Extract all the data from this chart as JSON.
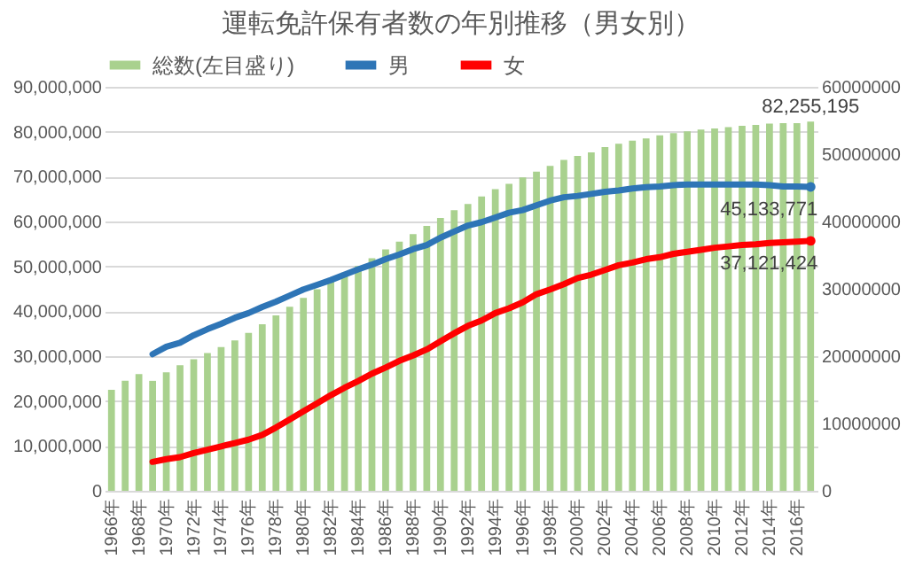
{
  "chart_data": {
    "type": "bar",
    "title": "運転免許保有者数の年別推移（男女別）",
    "categories": [
      "1966年",
      null,
      "1968年",
      null,
      "1970年",
      null,
      "1972年",
      null,
      "1974年",
      null,
      "1976年",
      null,
      "1978年",
      null,
      "1980年",
      null,
      "1982年",
      null,
      "1984年",
      null,
      "1986年",
      null,
      "1988年",
      null,
      "1990年",
      null,
      "1992年",
      null,
      "1994年",
      null,
      "1996年",
      null,
      "1998年",
      null,
      "2000年",
      null,
      "2002年",
      null,
      "2004年",
      null,
      "2006年",
      null,
      "2008年",
      null,
      "2010年",
      null,
      "2012年",
      null,
      "2014年",
      null,
      "2016年",
      null
    ],
    "series": [
      {
        "name": "総数(左目盛り)",
        "type": "bar",
        "color": "#a9d18e",
        "values": [
          22500000,
          24500000,
          26000000,
          24500000,
          26400000,
          28000000,
          29300000,
          30700000,
          32000000,
          33500000,
          35200000,
          37100000,
          39100000,
          41000000,
          43000000,
          44900000,
          46900000,
          48600000,
          50100000,
          51800000,
          53800000,
          55500000,
          57200000,
          59000000,
          60800000,
          62500000,
          63900000,
          65600000,
          67200000,
          68400000,
          69800000,
          71100000,
          72400000,
          73700000,
          74600000,
          75400000,
          76600000,
          77300000,
          78000000,
          78500000,
          79200000,
          79700000,
          80100000,
          80500000,
          80700000,
          81000000,
          81300000,
          81500000,
          81800000,
          81900000,
          81900000,
          82255195
        ],
        "value_labels": [
          null,
          null,
          null,
          null,
          null,
          null,
          null,
          null,
          null,
          null,
          null,
          null,
          null,
          null,
          null,
          null,
          null,
          null,
          null,
          null,
          null,
          null,
          null,
          null,
          null,
          null,
          null,
          null,
          null,
          null,
          null,
          null,
          null,
          null,
          null,
          null,
          null,
          null,
          null,
          null,
          null,
          null,
          null,
          null,
          null,
          null,
          null,
          null,
          null,
          null,
          null,
          "82,255,195"
        ]
      },
      {
        "name": "男",
        "type": "line",
        "axis": "y2",
        "color": "#2e75b6",
        "values": [
          null,
          null,
          null,
          20300000,
          21400000,
          22000000,
          23100000,
          24000000,
          24800000,
          25700000,
          26400000,
          27300000,
          28100000,
          29000000,
          29900000,
          30600000,
          31300000,
          32100000,
          32900000,
          33600000,
          34400000,
          35100000,
          35900000,
          36500000,
          37600000,
          38500000,
          39400000,
          39900000,
          40600000,
          41300000,
          41700000,
          42400000,
          43100000,
          43600000,
          43800000,
          44100000,
          44400000,
          44600000,
          44900000,
          45100000,
          45200000,
          45400000,
          45500000,
          45500000,
          45500000,
          45500000,
          45500000,
          45500000,
          45400000,
          45200000,
          45200000,
          45133771
        ],
        "value_labels": [
          null,
          null,
          null,
          null,
          null,
          null,
          null,
          null,
          null,
          null,
          null,
          null,
          null,
          null,
          null,
          null,
          null,
          null,
          null,
          null,
          null,
          null,
          null,
          null,
          null,
          null,
          null,
          null,
          null,
          null,
          null,
          null,
          null,
          null,
          null,
          null,
          null,
          null,
          null,
          null,
          null,
          null,
          null,
          null,
          null,
          null,
          null,
          null,
          null,
          null,
          null,
          "45,133,771"
        ]
      },
      {
        "name": "女",
        "type": "line",
        "axis": "y2",
        "color": "#ff0000",
        "values": [
          null,
          null,
          null,
          4300000,
          4700000,
          5000000,
          5600000,
          6100000,
          6600000,
          7100000,
          7600000,
          8300000,
          9400000,
          10600000,
          11800000,
          13000000,
          14200000,
          15300000,
          16300000,
          17400000,
          18300000,
          19300000,
          20100000,
          21000000,
          22200000,
          23400000,
          24500000,
          25300000,
          26400000,
          27100000,
          28000000,
          29200000,
          29900000,
          30700000,
          31600000,
          32100000,
          32800000,
          33500000,
          33900000,
          34400000,
          34700000,
          35200000,
          35500000,
          35800000,
          36100000,
          36300000,
          36500000,
          36600000,
          36800000,
          36900000,
          37000000,
          37121424
        ],
        "value_labels": [
          null,
          null,
          null,
          null,
          null,
          null,
          null,
          null,
          null,
          null,
          null,
          null,
          null,
          null,
          null,
          null,
          null,
          null,
          null,
          null,
          null,
          null,
          null,
          null,
          null,
          null,
          null,
          null,
          null,
          null,
          null,
          null,
          null,
          null,
          null,
          null,
          null,
          null,
          null,
          null,
          null,
          null,
          null,
          null,
          null,
          null,
          null,
          null,
          null,
          null,
          null,
          "37,121,424"
        ]
      }
    ],
    "ylim": [
      0,
      90000000
    ],
    "yticks": [
      0,
      {
        "value": 10000000,
        "label": "10,000,000"
      },
      {
        "value": 20000000,
        "label": "20,000,000"
      },
      {
        "value": 30000000,
        "label": "30,000,000"
      },
      {
        "value": 40000000,
        "label": "40,000,000"
      },
      {
        "value": 50000000,
        "label": "50,000,000"
      },
      {
        "value": 60000000,
        "label": "60,000,000"
      },
      {
        "value": 70000000,
        "label": "70,000,000"
      },
      {
        "value": 80000000,
        "label": "80,000,000"
      },
      {
        "value": 90000000,
        "label": "90,000,000"
      }
    ],
    "y2lim": [
      0,
      60000000
    ],
    "y2ticks": [
      0,
      10000000,
      20000000,
      30000000,
      40000000,
      50000000,
      60000000
    ],
    "grid": "y",
    "legend": "top"
  }
}
